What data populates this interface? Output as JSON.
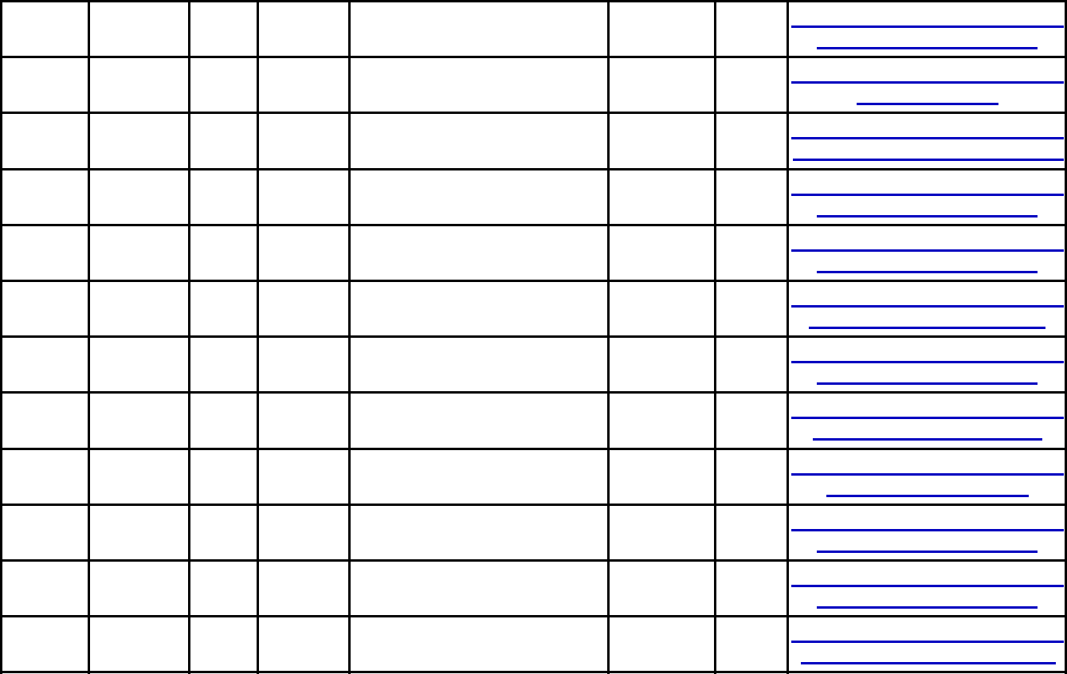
{
  "table": {
    "column_count": 8,
    "rows": [
      {
        "cells": [
          "",
          "",
          "",
          "",
          "",
          "",
          "",
          ""
        ]
      },
      {
        "cells": [
          "",
          "",
          "",
          "",
          "",
          "",
          "",
          ""
        ]
      },
      {
        "cells": [
          "",
          "",
          "",
          "",
          "",
          "",
          "",
          ""
        ]
      },
      {
        "cells": [
          "",
          "",
          "",
          "",
          "",
          "",
          "",
          ""
        ]
      },
      {
        "cells": [
          "",
          "",
          "",
          "",
          "",
          "",
          "",
          ""
        ]
      },
      {
        "cells": [
          "",
          "",
          "",
          "",
          "",
          "",
          "",
          ""
        ]
      },
      {
        "cells": [
          "",
          "",
          "",
          "",
          "",
          "",
          "",
          ""
        ]
      },
      {
        "cells": [
          "",
          "",
          "",
          "",
          "",
          "",
          "",
          ""
        ]
      },
      {
        "cells": [
          "",
          "",
          "",
          "",
          "",
          "",
          "",
          ""
        ]
      },
      {
        "cells": [
          "",
          "",
          "",
          "",
          "",
          "",
          "",
          ""
        ]
      },
      {
        "cells": [
          "",
          "",
          "",
          "",
          "",
          "",
          "",
          ""
        ]
      },
      {
        "cells": [
          "",
          "",
          "",
          "",
          "",
          "",
          "",
          ""
        ]
      }
    ]
  },
  "colors": {
    "border": "#000000",
    "link": "#0000c0",
    "background": "#ffffff"
  }
}
